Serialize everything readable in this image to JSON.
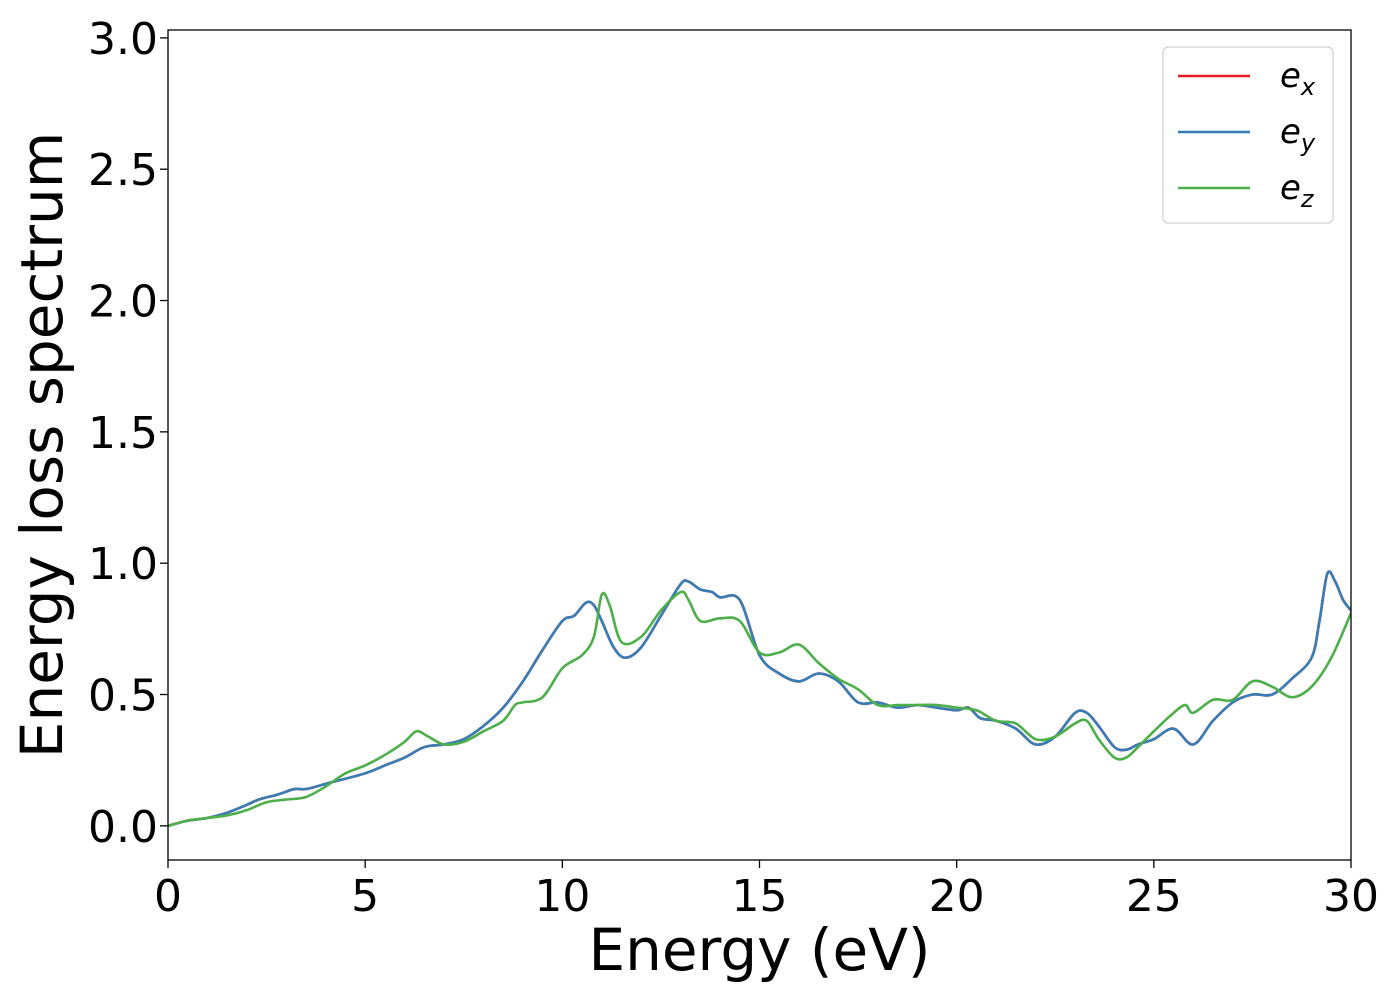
{
  "chart_data": {
    "type": "line",
    "title": "",
    "xlabel": "Energy (eV)",
    "ylabel": "Energy loss spectrum",
    "xlim": [
      0,
      30
    ],
    "ylim": [
      -0.13,
      3.03
    ],
    "xticks": [
      0,
      5,
      10,
      15,
      20,
      25,
      30
    ],
    "xtick_labels": [
      "0",
      "5",
      "10",
      "15",
      "20",
      "25",
      "30"
    ],
    "yticks": [
      0.0,
      0.5,
      1.0,
      1.5,
      2.0,
      2.5,
      3.0
    ],
    "ytick_labels": [
      "0.0",
      "0.5",
      "1.0",
      "1.5",
      "2.0",
      "2.5",
      "3.0"
    ],
    "grid": false,
    "legend_position": "top-right",
    "series": [
      {
        "name": "e_x",
        "label_base": "e",
        "label_sub": "x",
        "color": "#e41a1c",
        "x": [
          0,
          0.5,
          1,
          1.5,
          2,
          2.3,
          2.8,
          3.2,
          3.5,
          4,
          5,
          5.5,
          6,
          6.5,
          7,
          7.5,
          8,
          8.5,
          9,
          9.5,
          10,
          10.3,
          10.6,
          10.8,
          11,
          11.3,
          11.6,
          12,
          12.5,
          13,
          13.2,
          13.5,
          13.8,
          14,
          14.5,
          15,
          15.5,
          16,
          16.5,
          17,
          17.5,
          18,
          18.5,
          19,
          19.5,
          20,
          20.3,
          20.6,
          21,
          21.5,
          22,
          22.5,
          23,
          23.3,
          23.6,
          24,
          24.3,
          24.6,
          25,
          25.5,
          26,
          26.5,
          27,
          27.5,
          28,
          28.5,
          29,
          29.2,
          29.4,
          29.6,
          29.8,
          30
        ],
        "y": [
          0.0,
          0.02,
          0.03,
          0.05,
          0.08,
          0.1,
          0.12,
          0.14,
          0.14,
          0.16,
          0.2,
          0.23,
          0.26,
          0.3,
          0.31,
          0.33,
          0.38,
          0.45,
          0.55,
          0.67,
          0.78,
          0.8,
          0.85,
          0.84,
          0.78,
          0.68,
          0.64,
          0.68,
          0.8,
          0.92,
          0.93,
          0.9,
          0.89,
          0.87,
          0.86,
          0.65,
          0.58,
          0.55,
          0.58,
          0.55,
          0.47,
          0.47,
          0.45,
          0.46,
          0.45,
          0.44,
          0.45,
          0.41,
          0.4,
          0.37,
          0.31,
          0.34,
          0.43,
          0.43,
          0.38,
          0.3,
          0.29,
          0.31,
          0.33,
          0.37,
          0.31,
          0.4,
          0.47,
          0.5,
          0.5,
          0.56,
          0.64,
          0.78,
          0.96,
          0.93,
          0.86,
          0.82
        ]
      },
      {
        "name": "e_y",
        "label_base": "e",
        "label_sub": "y",
        "color": "#377eb8",
        "x": [
          0,
          0.5,
          1,
          1.5,
          2,
          2.3,
          2.8,
          3.2,
          3.5,
          4,
          5,
          5.5,
          6,
          6.5,
          7,
          7.5,
          8,
          8.5,
          9,
          9.5,
          10,
          10.3,
          10.6,
          10.8,
          11,
          11.3,
          11.6,
          12,
          12.5,
          13,
          13.2,
          13.5,
          13.8,
          14,
          14.5,
          15,
          15.5,
          16,
          16.5,
          17,
          17.5,
          18,
          18.5,
          19,
          19.5,
          20,
          20.3,
          20.6,
          21,
          21.5,
          22,
          22.5,
          23,
          23.3,
          23.6,
          24,
          24.3,
          24.6,
          25,
          25.5,
          26,
          26.5,
          27,
          27.5,
          28,
          28.5,
          29,
          29.2,
          29.4,
          29.6,
          29.8,
          30
        ],
        "y": [
          0.0,
          0.02,
          0.03,
          0.05,
          0.08,
          0.1,
          0.12,
          0.14,
          0.14,
          0.16,
          0.2,
          0.23,
          0.26,
          0.3,
          0.31,
          0.33,
          0.38,
          0.45,
          0.55,
          0.67,
          0.78,
          0.8,
          0.85,
          0.84,
          0.78,
          0.68,
          0.64,
          0.68,
          0.8,
          0.92,
          0.93,
          0.9,
          0.89,
          0.87,
          0.86,
          0.65,
          0.58,
          0.55,
          0.58,
          0.55,
          0.47,
          0.47,
          0.45,
          0.46,
          0.45,
          0.44,
          0.45,
          0.41,
          0.4,
          0.37,
          0.31,
          0.34,
          0.43,
          0.43,
          0.38,
          0.3,
          0.29,
          0.31,
          0.33,
          0.37,
          0.31,
          0.4,
          0.47,
          0.5,
          0.5,
          0.56,
          0.64,
          0.78,
          0.96,
          0.93,
          0.86,
          0.82
        ]
      },
      {
        "name": "e_z",
        "label_base": "e",
        "label_sub": "z",
        "color": "#4daf4a",
        "x": [
          0,
          0.5,
          1,
          1.5,
          2,
          2.5,
          3,
          3.5,
          4,
          4.5,
          5,
          5.5,
          6,
          6.3,
          6.6,
          7,
          7.5,
          8,
          8.5,
          8.8,
          9,
          9.5,
          10,
          10.5,
          10.8,
          11,
          11.2,
          11.5,
          12,
          12.5,
          13,
          13.2,
          13.5,
          14,
          14.5,
          15,
          15.5,
          16,
          16.5,
          17,
          17.5,
          18,
          18.5,
          19,
          19.5,
          20,
          20.5,
          21,
          21.5,
          22,
          22.5,
          23,
          23.3,
          23.6,
          24,
          24.3,
          24.6,
          25,
          25.5,
          25.8,
          26,
          26.5,
          27,
          27.5,
          28,
          28.5,
          29,
          29.5,
          30
        ],
        "y": [
          0.0,
          0.02,
          0.03,
          0.04,
          0.06,
          0.09,
          0.1,
          0.11,
          0.15,
          0.2,
          0.23,
          0.27,
          0.32,
          0.36,
          0.34,
          0.31,
          0.32,
          0.36,
          0.4,
          0.46,
          0.47,
          0.49,
          0.6,
          0.65,
          0.72,
          0.88,
          0.84,
          0.7,
          0.72,
          0.82,
          0.89,
          0.86,
          0.78,
          0.79,
          0.78,
          0.66,
          0.66,
          0.69,
          0.62,
          0.56,
          0.52,
          0.46,
          0.46,
          0.46,
          0.46,
          0.45,
          0.44,
          0.4,
          0.39,
          0.33,
          0.34,
          0.39,
          0.4,
          0.33,
          0.26,
          0.26,
          0.3,
          0.36,
          0.43,
          0.46,
          0.43,
          0.48,
          0.48,
          0.55,
          0.53,
          0.49,
          0.53,
          0.64,
          0.81
        ]
      }
    ]
  }
}
